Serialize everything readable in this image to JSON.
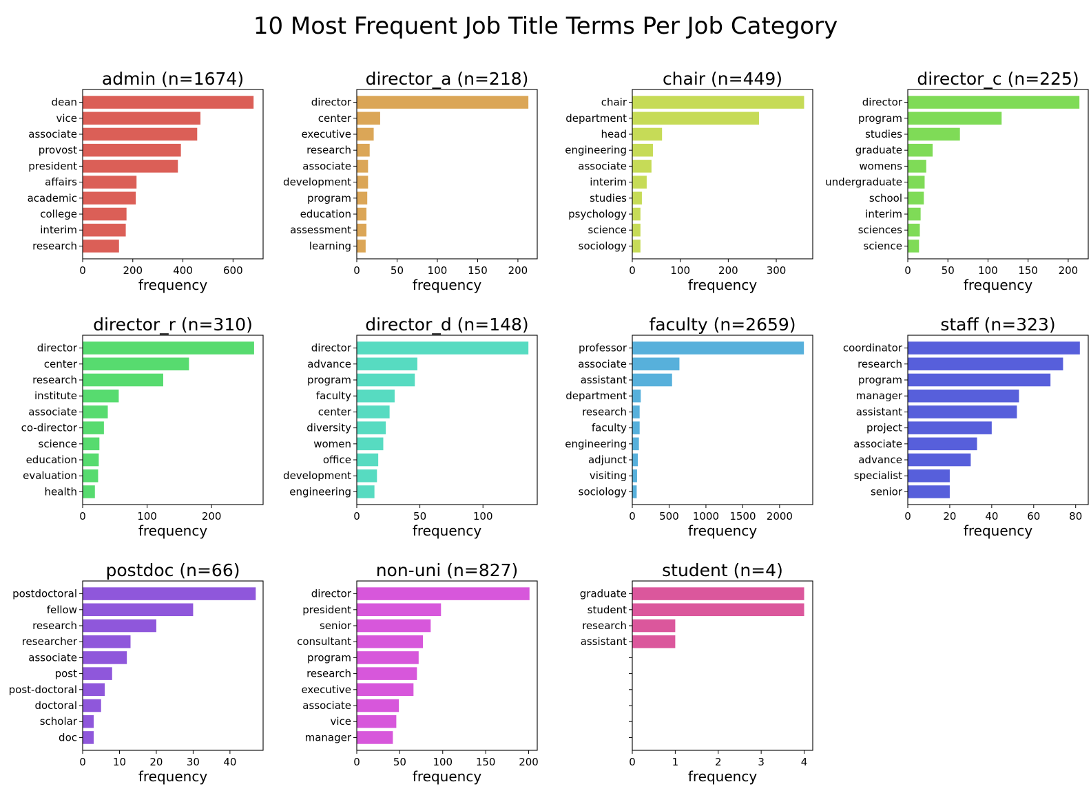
{
  "figure": {
    "title": "10 Most Frequent Job Title Terms Per Job Category"
  },
  "chart_data": [
    {
      "type": "bar",
      "orientation": "horizontal",
      "title": "admin (n=1674)",
      "xlabel": "frequency",
      "ylabel": "",
      "color": "#db5f57",
      "xlim": [
        0,
        720
      ],
      "xticks": [
        0,
        200,
        400,
        600
      ],
      "categories": [
        "dean",
        "vice",
        "associate",
        "provost",
        "president",
        "affairs",
        "academic",
        "college",
        "interim",
        "research"
      ],
      "values": [
        682,
        470,
        457,
        392,
        380,
        215,
        212,
        175,
        172,
        145
      ]
    },
    {
      "type": "bar",
      "orientation": "horizontal",
      "title": "director_a (n=218)",
      "xlabel": "frequency",
      "ylabel": "",
      "color": "#dba657",
      "xlim": [
        0,
        224
      ],
      "xticks": [
        0,
        50,
        100,
        150,
        200
      ],
      "categories": [
        "director",
        "center",
        "executive",
        "research",
        "associate",
        "development",
        "program",
        "education",
        "assessment",
        "learning"
      ],
      "values": [
        213,
        29,
        21,
        16,
        14,
        14,
        13,
        12,
        12,
        11
      ]
    },
    {
      "type": "bar",
      "orientation": "horizontal",
      "title": "chair (n=449)",
      "xlabel": "frequency",
      "ylabel": "",
      "color": "#c6db57",
      "xlim": [
        0,
        376
      ],
      "xticks": [
        0,
        100,
        200,
        300
      ],
      "categories": [
        "chair",
        "department",
        "head",
        "engineering",
        "associate",
        "interim",
        "studies",
        "psychology",
        "science",
        "sociology"
      ],
      "values": [
        358,
        264,
        62,
        43,
        40,
        30,
        20,
        17,
        17,
        17
      ]
    },
    {
      "type": "bar",
      "orientation": "horizontal",
      "title": "director_c (n=225)",
      "xlabel": "frequency",
      "ylabel": "",
      "color": "#7fdb57",
      "xlim": [
        0,
        225
      ],
      "xticks": [
        0,
        50,
        100,
        150,
        200
      ],
      "categories": [
        "director",
        "program",
        "studies",
        "graduate",
        "womens",
        "undergraduate",
        "school",
        "interim",
        "sciences",
        "science"
      ],
      "values": [
        214,
        117,
        65,
        31,
        23,
        21,
        20,
        16,
        15,
        14
      ]
    },
    {
      "type": "bar",
      "orientation": "horizontal",
      "title": "director_r (n=310)",
      "xlabel": "frequency",
      "ylabel": "",
      "color": "#57db6f",
      "xlim": [
        0,
        280
      ],
      "xticks": [
        0,
        100,
        200
      ],
      "categories": [
        "director",
        "center",
        "research",
        "institute",
        "associate",
        "co-director",
        "science",
        "education",
        "evaluation",
        "health"
      ],
      "values": [
        266,
        165,
        125,
        56,
        39,
        33,
        26,
        25,
        24,
        19
      ]
    },
    {
      "type": "bar",
      "orientation": "horizontal",
      "title": "director_d (n=148)",
      "xlabel": "frequency",
      "ylabel": "",
      "color": "#57dbc1",
      "xlim": [
        0,
        143
      ],
      "xticks": [
        0,
        50,
        100
      ],
      "categories": [
        "director",
        "advance",
        "program",
        "faculty",
        "center",
        "diversity",
        "women",
        "office",
        "development",
        "engineering"
      ],
      "values": [
        136,
        48,
        46,
        30,
        26,
        23,
        21,
        17,
        16,
        14
      ]
    },
    {
      "type": "bar",
      "orientation": "horizontal",
      "title": "faculty (n=2659)",
      "xlabel": "frequency",
      "ylabel": "",
      "color": "#57b0db",
      "xlim": [
        0,
        2450
      ],
      "xticks": [
        0,
        500,
        1000,
        1500,
        2000
      ],
      "categories": [
        "professor",
        "associate",
        "assistant",
        "department",
        "research",
        "faculty",
        "engineering",
        "adjunct",
        "visiting",
        "sociology"
      ],
      "values": [
        2330,
        640,
        540,
        115,
        100,
        100,
        90,
        75,
        65,
        60
      ]
    },
    {
      "type": "bar",
      "orientation": "horizontal",
      "title": "staff (n=323)",
      "xlabel": "frequency",
      "ylabel": "",
      "color": "#575fdb",
      "xlim": [
        0,
        86
      ],
      "xticks": [
        0,
        20,
        40,
        60,
        80
      ],
      "categories": [
        "coordinator",
        "research",
        "program",
        "manager",
        "assistant",
        "project",
        "associate",
        "advance",
        "specialist",
        "senior"
      ],
      "values": [
        82,
        74,
        68,
        53,
        52,
        40,
        33,
        30,
        20,
        20
      ]
    },
    {
      "type": "bar",
      "orientation": "horizontal",
      "title": "postdoc (n=66)",
      "xlabel": "frequency",
      "ylabel": "",
      "color": "#8f57db",
      "xlim": [
        0,
        49
      ],
      "xticks": [
        0,
        10,
        20,
        30,
        40
      ],
      "categories": [
        "postdoctoral",
        "fellow",
        "research",
        "researcher",
        "associate",
        "post",
        "post-doctoral",
        "doctoral",
        "scholar",
        "doc"
      ],
      "values": [
        47,
        30,
        20,
        13,
        12,
        8,
        6,
        5,
        3,
        3
      ]
    },
    {
      "type": "bar",
      "orientation": "horizontal",
      "title": "non-uni (n=827)",
      "xlabel": "frequency",
      "ylabel": "",
      "color": "#d757db",
      "xlim": [
        0,
        210
      ],
      "xticks": [
        0,
        50,
        100,
        150,
        200
      ],
      "categories": [
        "director",
        "president",
        "senior",
        "consultant",
        "program",
        "research",
        "executive",
        "associate",
        "vice",
        "manager"
      ],
      "values": [
        201,
        98,
        86,
        77,
        72,
        70,
        66,
        49,
        46,
        42
      ]
    },
    {
      "type": "bar",
      "orientation": "horizontal",
      "title": "student (n=4)",
      "xlabel": "frequency",
      "ylabel": "",
      "color": "#db579c",
      "xlim": [
        0,
        4.2
      ],
      "xticks": [
        0,
        1,
        2,
        3,
        4
      ],
      "categories": [
        "graduate",
        "student",
        "research",
        "assistant",
        "",
        "",
        "",
        "",
        "",
        ""
      ],
      "values": [
        4,
        4,
        1,
        1,
        0,
        0,
        0,
        0,
        0,
        0
      ]
    }
  ]
}
